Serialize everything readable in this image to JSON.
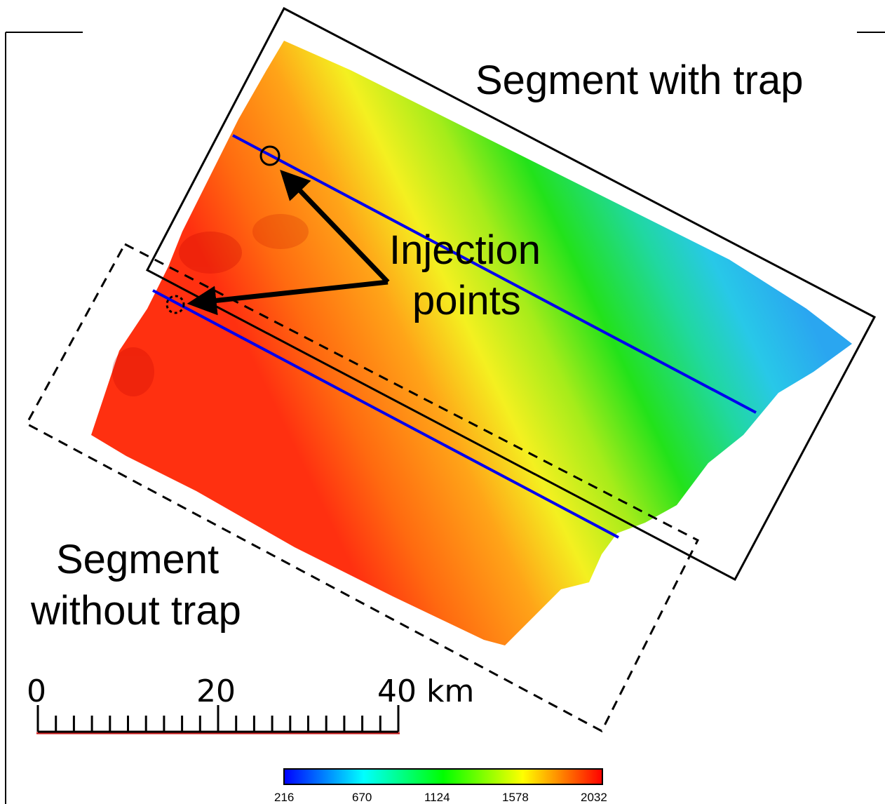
{
  "map": {
    "segment_with_trap_label": "Segment with trap",
    "segment_without_trap_label_line1": "Segment",
    "segment_without_trap_label_line2": "without trap",
    "injection_label_line1": "Injection",
    "injection_label_line2": "points"
  },
  "scale_bar": {
    "tick_labels": [
      "0",
      "20",
      "40 km"
    ],
    "bar_color": "#cc2222"
  },
  "colorbar": {
    "tick_labels": [
      "216",
      "670",
      "1124",
      "1578",
      "2032"
    ],
    "colors": [
      "#0000ff",
      "#00ffff",
      "#00ff00",
      "#ffff00",
      "#ff0000"
    ]
  },
  "colors": {
    "trace_lines": "#0000ee",
    "outline": "#000000"
  }
}
